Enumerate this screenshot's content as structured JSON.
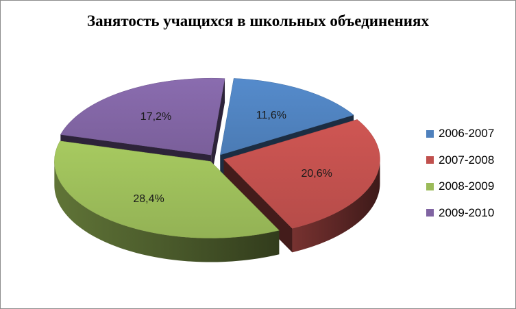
{
  "chart_data": {
    "type": "pie",
    "title": "Занятость учащихся в школьных объединениях",
    "categories": [
      "2006-2007",
      "2007-2008",
      "2008-2009",
      "2009-2010"
    ],
    "values": [
      11.6,
      20.6,
      28.4,
      17.2
    ],
    "data_labels": [
      "11,6%",
      "20,6%",
      "28,4%",
      "17,2%"
    ],
    "colors": [
      "#4f81bd",
      "#c0504d",
      "#9bbb59",
      "#8064a2"
    ],
    "legend_position": "right",
    "style": "3d-exploded"
  }
}
